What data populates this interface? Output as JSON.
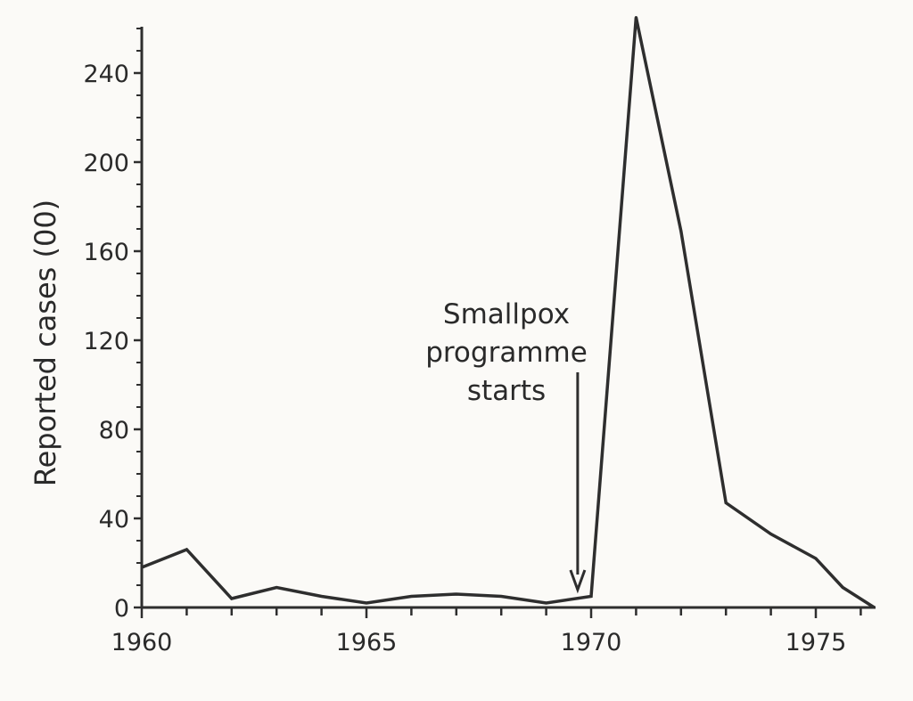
{
  "chart_data": {
    "type": "line",
    "ylabel": "Reported cases (00)",
    "xlabel": "",
    "title": "",
    "x_tick_labels": [
      "1960",
      "1965",
      "1970",
      "1975"
    ],
    "x_ticks": [
      1960,
      1961,
      1962,
      1963,
      1964,
      1965,
      1966,
      1967,
      1968,
      1969,
      1970,
      1971,
      1972,
      1973,
      1974,
      1975,
      1976
    ],
    "y_ticks": [
      0,
      40,
      80,
      120,
      160,
      200,
      240
    ],
    "y_minor_step": 10,
    "xlim": [
      1960,
      1976.3
    ],
    "ylim": [
      0,
      262
    ],
    "grid": false,
    "legend": false,
    "series": [
      {
        "x": [
          1960,
          1961,
          1962,
          1963,
          1964,
          1965,
          1966,
          1967,
          1968,
          1969,
          1970,
          1971,
          1972,
          1973,
          1974,
          1975,
          1975.6,
          1976.3
        ],
        "y": [
          18,
          26,
          4,
          9,
          5,
          2,
          5,
          6,
          5,
          2,
          5,
          265,
          169,
          47,
          33,
          22,
          9,
          0
        ]
      }
    ],
    "annotation": {
      "lines": [
        "Smallpox",
        "programme",
        "starts"
      ],
      "arrow_x": 1969.7
    },
    "colors": {
      "line": "#2e2e2e",
      "axis": "#2e2e2e",
      "background": "#fbfaf7"
    }
  }
}
